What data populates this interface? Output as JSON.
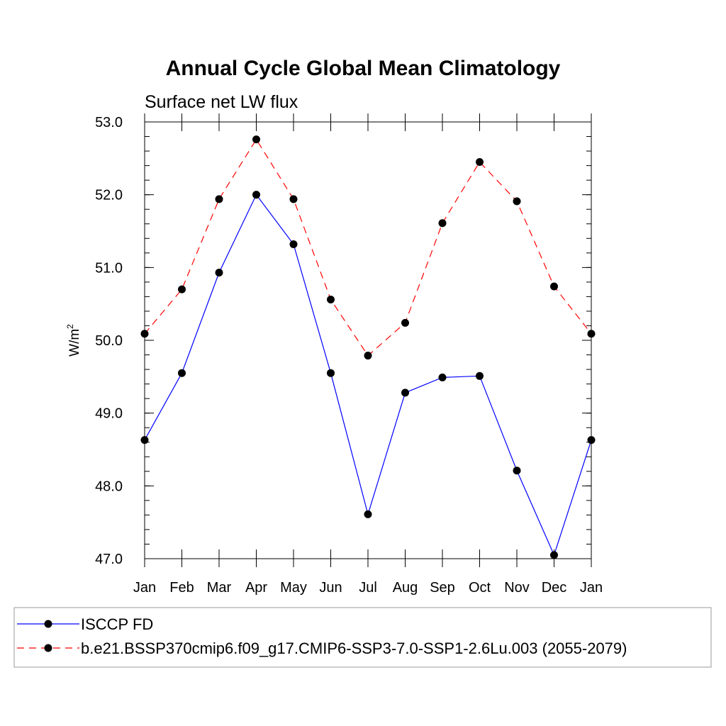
{
  "chart_data": {
    "type": "line",
    "title": "Annual Cycle Global Mean Climatology",
    "subtitle": "Surface net LW flux",
    "ylabel": "W/m",
    "ylabel_sup": "2",
    "xlabel": "",
    "categories": [
      "Jan",
      "Feb",
      "Mar",
      "Apr",
      "May",
      "Jun",
      "Jul",
      "Aug",
      "Sep",
      "Oct",
      "Nov",
      "Dec",
      "Jan"
    ],
    "ylim": [
      47.0,
      53.0
    ],
    "yticks": [
      "47.0",
      "48.0",
      "49.0",
      "50.0",
      "51.0",
      "52.0",
      "53.0"
    ],
    "grid": false,
    "legend_position": "bottom",
    "series": [
      {
        "name": "ISCCP FD",
        "color": "#0000ff",
        "dash": "solid",
        "marker": "circle",
        "values": [
          48.63,
          49.55,
          50.93,
          52.0,
          51.32,
          49.55,
          47.61,
          49.28,
          49.49,
          49.51,
          48.21,
          47.05,
          48.63
        ]
      },
      {
        "name": "b.e21.BSSP370cmip6.f09_g17.CMIP6-SSP3-7.0-SSP1-2.6Lu.003 (2055-2079)",
        "color": "#ff0000",
        "dash": "dashed",
        "marker": "circle",
        "values": [
          50.09,
          50.7,
          51.94,
          52.76,
          51.94,
          50.56,
          49.79,
          50.24,
          51.61,
          52.45,
          51.91,
          50.74,
          50.09
        ]
      }
    ]
  }
}
